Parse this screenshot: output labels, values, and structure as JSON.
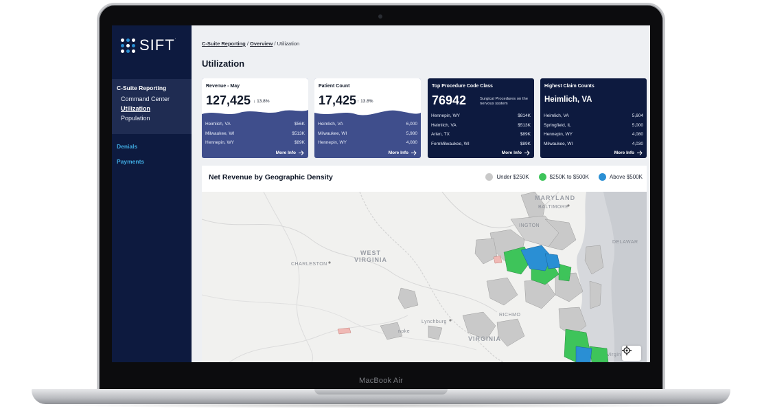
{
  "device": {
    "bezel_label": "MacBook Air"
  },
  "brand": {
    "name": "SIFT",
    "mark": "."
  },
  "sidebar": {
    "group_title": "C-Suite Reporting",
    "sub_items": [
      {
        "label": "Command Center"
      },
      {
        "label": "Utilization"
      },
      {
        "label": "Population"
      }
    ],
    "links": [
      {
        "label": "Denials"
      },
      {
        "label": "Payments"
      }
    ]
  },
  "breadcrumb": {
    "item1": "C-Suite Reporting",
    "sep": "/",
    "item2": "Overview",
    "current": "Utilization"
  },
  "page": {
    "title": "Utilization"
  },
  "cards": [
    {
      "title": "Revenue - May",
      "value": "127,425",
      "change": "13.8%",
      "direction": "down",
      "rows": [
        {
          "label": "Heimlich, VA",
          "value": "$56K"
        },
        {
          "label": "Milwaukee, WI",
          "value": "$513K"
        },
        {
          "label": "Hennepin, WY",
          "value": "$89K"
        }
      ],
      "more": "More Info"
    },
    {
      "title": "Patient Count",
      "value": "17,425",
      "change": "13.8%",
      "direction": "up",
      "rows": [
        {
          "label": "Heimlich, VA",
          "value": "6,000"
        },
        {
          "label": "Milwaukee, WI",
          "value": "5,980"
        },
        {
          "label": "Hennepin, WY",
          "value": "4,080"
        }
      ],
      "more": "More Info"
    },
    {
      "title": "Top Procedure Code Class",
      "value": "76942",
      "desc": "Surgical Procedures on the nervous system",
      "rows": [
        {
          "label": "Hennepin, WY",
          "value": "$814K"
        },
        {
          "label": "Heimlich, VA",
          "value": "$513K"
        },
        {
          "label": "Arlen, TX",
          "value": "$89K"
        },
        {
          "label": "FernMilwaukee, WI",
          "value": "$89K"
        }
      ],
      "more": "More Info"
    },
    {
      "title": "Highest Claim Counts",
      "value": "Heimlich, VA",
      "rows": [
        {
          "label": "Heimlich, VA",
          "value": "5,604"
        },
        {
          "label": "Springfield, IL",
          "value": "5,000"
        },
        {
          "label": "Hennepin, WY",
          "value": "4,080"
        },
        {
          "label": "Milwaukee, WI",
          "value": "4,030"
        }
      ],
      "more": "More Info"
    }
  ],
  "map_section": {
    "title": "Net Revenue by Geographic Density",
    "legend": [
      {
        "label": "Under $250K",
        "color": "#c9c9c9"
      },
      {
        "label": "$250K to $500K",
        "color": "#3ec45a"
      },
      {
        "label": "Above $500K",
        "color": "#2a8fd4"
      }
    ],
    "labels": {
      "maryland": "MARYLAND",
      "baltimore": "BALTIMORE",
      "washington": "INGTON",
      "delaware": "DELAWAR",
      "west_virginia_1": "WEST",
      "west_virginia_2": "VIRGINIA",
      "charleston": "CHARLESTON",
      "richmond": "RICHMO",
      "lynchburg": "Lynchburg",
      "roanoke": "noke",
      "virginia": "VIRGINIA",
      "virginia_beach": "Virgin"
    }
  },
  "colors": {
    "sidebar": "#0d1a3f",
    "card_light": "#3f4e8c",
    "accent": "#2a8fd4",
    "green": "#3ec45a",
    "grey": "#c9c9c9"
  }
}
